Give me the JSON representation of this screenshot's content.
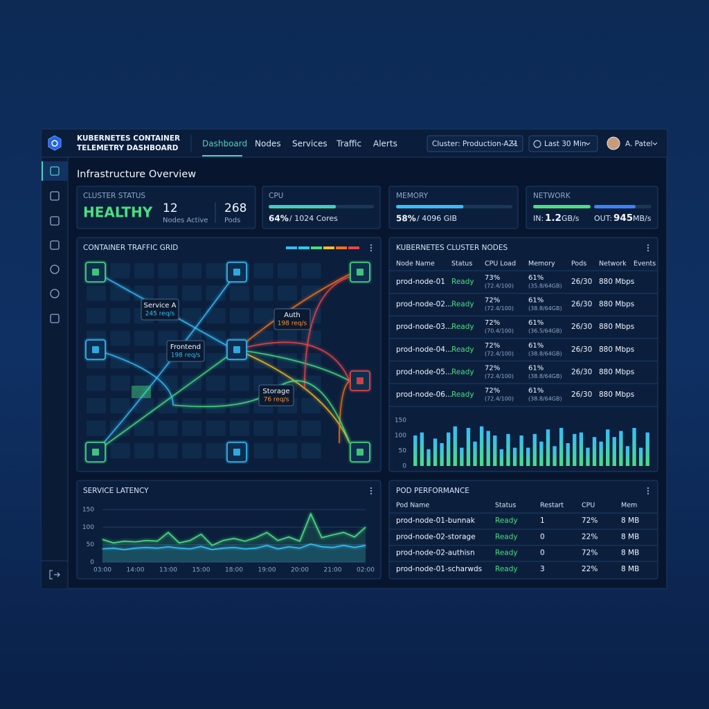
{
  "header": {
    "title_line1": "KUBERNETES CONTAINER",
    "title_line2": "TELEMETRY DASHBOARD",
    "nav": [
      "Dashboard",
      "Nodes",
      "Services",
      "Traffic",
      "Alerts"
    ],
    "cluster": "Cluster: Production-AZ1",
    "time_range": "Last 30 Min",
    "user": "A. Patel"
  },
  "page_title": "Infrastructure Overview",
  "cards": {
    "cluster_status": {
      "title": "CLUSTER STATUS",
      "status": "HEALTHY",
      "nodes": "12",
      "nodes_label": "Nodes Active",
      "pods": "268",
      "pods_label": "Pods"
    },
    "cpu": {
      "title": "CPU",
      "value": 64,
      "value_label": "64%",
      "detail": "/ 1024 Cores"
    },
    "memory": {
      "title": "MEMORY",
      "value": 58,
      "value_label": "58%",
      "detail": "/ 4096 GIB"
    },
    "network": {
      "title": "NETWORK",
      "in_label": "IN:",
      "in_value": "1.2",
      "in_unit": "GB/s",
      "out_label": "OUT:",
      "out_value": "945",
      "out_unit": "MB/s"
    }
  },
  "traffic_grid": {
    "title": "CONTAINER TRAFFIC GRID",
    "services": [
      {
        "name": "Service A",
        "rate": "245 req/s"
      },
      {
        "name": "Frontend",
        "rate": "198 req/s"
      },
      {
        "name": "Auth",
        "rate": "198 req/s"
      },
      {
        "name": "Storage",
        "rate": "76 req/s"
      }
    ]
  },
  "nodes_table": {
    "title": "KUBERNETES CLUSTER NODES",
    "columns": [
      "Node Name",
      "Status",
      "CPU Load",
      "Memory",
      "Pods",
      "Network",
      "Events"
    ],
    "rows": [
      [
        "prod-node-01",
        "Ready",
        "73%",
        "(72.4/100)",
        "61%",
        "(35.8/64GB)",
        "26/30",
        "880 Mbps"
      ],
      [
        "prod-node-02...",
        "Ready",
        "72%",
        "(72.4/100)",
        "61%",
        "(38.8/64GB)",
        "26/30",
        "880 Mbps"
      ],
      [
        "prod-node-03...",
        "Ready",
        "72%",
        "(70.4/100)",
        "61%",
        "(36.5/64GB)",
        "26/30",
        "880 Mbps"
      ],
      [
        "prod-node-04...",
        "Ready",
        "72%",
        "(72.4/100)",
        "61%",
        "(38.8/64GB)",
        "26/30",
        "880 Mbps"
      ],
      [
        "prod-node-05...",
        "Ready",
        "72%",
        "(72.4/100)",
        "61%",
        "(38.8/64GB)",
        "26/30",
        "880 Mbps"
      ],
      [
        "prod-node-06...",
        "Ready",
        "72%",
        "(72.4/100)",
        "61%",
        "(38.8/64GB)",
        "26/30",
        "880 Mbps"
      ]
    ]
  },
  "nodes_chart": {
    "type": "bar",
    "values": [
      100,
      110,
      55,
      90,
      75,
      110,
      130,
      60,
      125,
      80,
      130,
      115,
      100,
      55,
      105,
      60,
      100,
      60,
      105,
      80,
      120,
      65,
      125,
      75,
      105,
      110,
      60,
      95,
      80,
      120,
      95,
      115,
      65,
      125,
      60,
      110
    ],
    "ylim": [
      0,
      150
    ],
    "yticks": [
      0,
      50,
      100,
      150
    ]
  },
  "latency": {
    "title": "SERVICE LATENCY",
    "type": "line",
    "xtick_labels": [
      "03:00",
      "14:00",
      "13:00",
      "15:00",
      "18:00",
      "19:00",
      "20:00",
      "21:00",
      "02:00"
    ],
    "series": [
      {
        "color": "#4ade80",
        "values": [
          65,
          55,
          60,
          58,
          62,
          60,
          85,
          55,
          62,
          80,
          48,
          62,
          68,
          60,
          70,
          85,
          62,
          72,
          60,
          138,
          70,
          78,
          85,
          72,
          100
        ]
      },
      {
        "color": "#38bdf8",
        "values": [
          38,
          40,
          36,
          40,
          42,
          40,
          44,
          40,
          38,
          45,
          36,
          40,
          42,
          38,
          40,
          48,
          38,
          44,
          40,
          52,
          44,
          42,
          48,
          42,
          48
        ]
      }
    ],
    "ylim": [
      0,
      150
    ],
    "yticks": [
      0,
      50,
      100,
      150
    ]
  },
  "pod_table": {
    "title": "POD PERFORMANCE",
    "columns": [
      "Pod Name",
      "Status",
      "Restart",
      "CPU",
      "Mem"
    ],
    "rows": [
      [
        "prod-node-01-bunnak",
        "Ready",
        "1",
        "72%",
        "8 MB"
      ],
      [
        "prod-node-02-storage",
        "Ready",
        "0",
        "22%",
        "8 MB"
      ],
      [
        "prod-node-02-authisn",
        "Ready",
        "0",
        "72%",
        "8 MB"
      ],
      [
        "prod-node-01-scharwds",
        "Ready",
        "3",
        "22%",
        "8 MB"
      ]
    ]
  }
}
